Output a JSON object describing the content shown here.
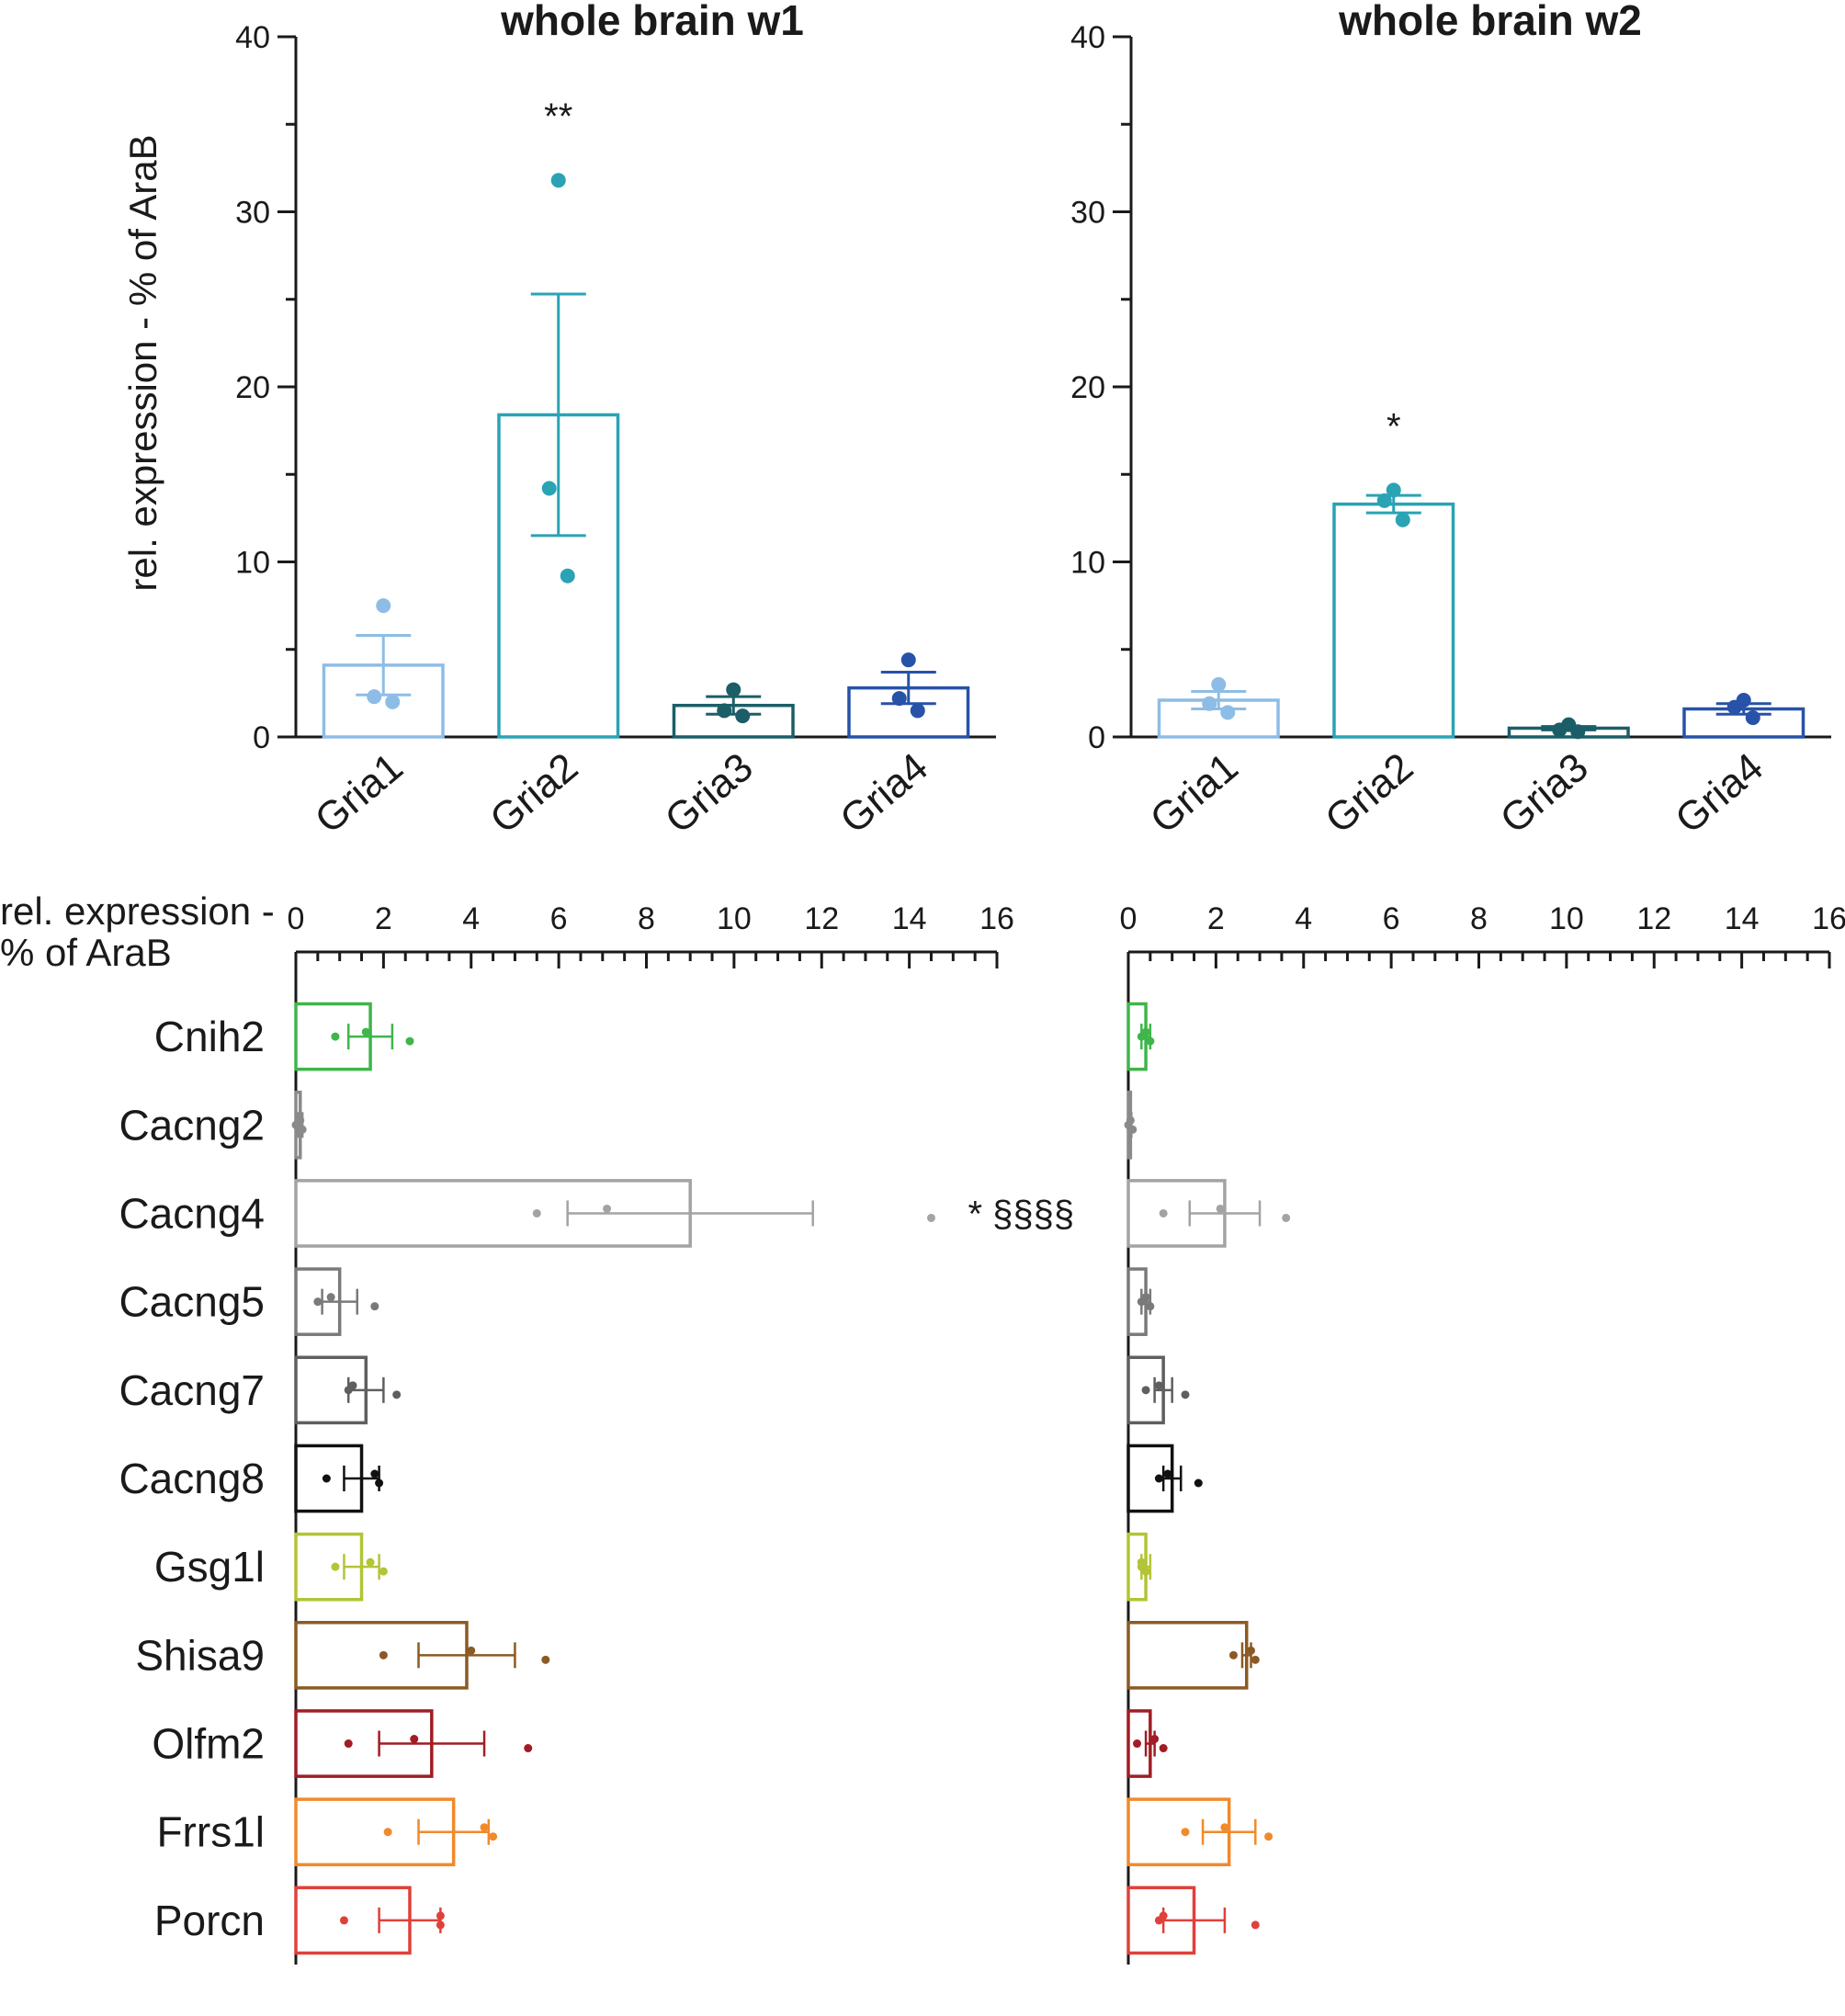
{
  "chart_data": [
    {
      "id": "w1_gria",
      "type": "bar",
      "title": "whole brain w1",
      "ylabel": "rel. expression - % of AraB",
      "ylim": [
        0,
        40
      ],
      "yticks": [
        0,
        10,
        20,
        30,
        40
      ],
      "categories": [
        "Gria1",
        "Gria2",
        "Gria3",
        "Gria4"
      ],
      "colors": [
        "#8dbde6",
        "#2aa3b5",
        "#1b5e68",
        "#2752a8"
      ],
      "values": [
        4.1,
        18.4,
        1.8,
        2.8
      ],
      "sem": [
        1.7,
        6.9,
        0.5,
        0.9
      ],
      "points": [
        [
          7.5,
          2.3,
          2.0
        ],
        [
          31.8,
          14.2,
          9.2
        ],
        [
          2.7,
          1.5,
          1.2
        ],
        [
          4.4,
          2.2,
          1.5
        ]
      ],
      "annotations": [
        "",
        "**",
        "",
        ""
      ],
      "grid": false
    },
    {
      "id": "w2_gria",
      "type": "bar",
      "title": "whole brain w2",
      "ylabel": "",
      "ylim": [
        0,
        40
      ],
      "yticks": [
        0,
        10,
        20,
        30,
        40
      ],
      "categories": [
        "Gria1",
        "Gria2",
        "Gria3",
        "Gria4"
      ],
      "colors": [
        "#8dbde6",
        "#2aa3b5",
        "#1b5e68",
        "#2752a8"
      ],
      "values": [
        2.1,
        13.3,
        0.5,
        1.6
      ],
      "sem": [
        0.5,
        0.5,
        0.1,
        0.3
      ],
      "points": [
        [
          3.0,
          1.9,
          1.4
        ],
        [
          14.1,
          13.5,
          12.4
        ],
        [
          0.7,
          0.4,
          0.3
        ],
        [
          2.1,
          1.7,
          1.1
        ]
      ],
      "annotations": [
        "",
        "*",
        "",
        ""
      ],
      "grid": false
    },
    {
      "id": "w1_aux",
      "type": "bar",
      "orientation": "horizontal",
      "title": "",
      "xlabel": "rel. expression - % of AraB",
      "xlim": [
        0,
        16
      ],
      "xticks": [
        0,
        2,
        4,
        6,
        8,
        10,
        12,
        14,
        16
      ],
      "categories": [
        "Cnih2",
        "Cacng2",
        "Cacng4",
        "Cacng5",
        "Cacng7",
        "Cacng8",
        "Gsg1l",
        "Shisa9",
        "Olfm2",
        "Frrs1l",
        "Porcn"
      ],
      "colors": [
        "#3fb54a",
        "#8a8a8a",
        "#a3a3a3",
        "#7a7a7a",
        "#5f5f5f",
        "#111111",
        "#b3c436",
        "#8b5a24",
        "#a11c24",
        "#f08a2b",
        "#e0403a"
      ],
      "values": [
        1.7,
        0.1,
        9.0,
        1.0,
        1.6,
        1.5,
        1.5,
        3.9,
        3.1,
        3.6,
        2.6
      ],
      "sem": [
        0.5,
        0.05,
        2.8,
        0.4,
        0.4,
        0.4,
        0.4,
        1.1,
        1.2,
        0.8,
        0.7
      ],
      "points": [
        [
          0.9,
          1.6,
          2.6
        ],
        [
          0.0,
          0.1,
          0.15
        ],
        [
          5.5,
          7.1,
          14.5
        ],
        [
          0.5,
          0.8,
          1.8
        ],
        [
          1.2,
          1.3,
          2.3
        ],
        [
          0.7,
          1.8,
          1.9
        ],
        [
          0.9,
          1.7,
          2.0
        ],
        [
          2.0,
          4.0,
          5.7
        ],
        [
          1.2,
          2.7,
          5.3
        ],
        [
          2.1,
          4.3,
          4.5
        ],
        [
          1.1,
          3.3,
          3.3
        ]
      ],
      "annotations": [
        "",
        "",
        "* §§§§",
        "",
        "",
        "",
        "",
        "",
        "",
        "",
        ""
      ],
      "grid": false
    },
    {
      "id": "w2_aux",
      "type": "bar",
      "orientation": "horizontal",
      "title": "",
      "xlabel": "",
      "xlim": [
        0,
        16
      ],
      "xticks": [
        0,
        2,
        4,
        6,
        8,
        10,
        12,
        14,
        16
      ],
      "categories": [
        "Cnih2",
        "Cacng2",
        "Cacng4",
        "Cacng5",
        "Cacng7",
        "Cacng8",
        "Gsg1l",
        "Shisa9",
        "Olfm2",
        "Frrs1l",
        "Porcn"
      ],
      "colors": [
        "#3fb54a",
        "#8a8a8a",
        "#a3a3a3",
        "#7a7a7a",
        "#5f5f5f",
        "#111111",
        "#b3c436",
        "#8b5a24",
        "#a11c24",
        "#f08a2b",
        "#e0403a"
      ],
      "values": [
        0.4,
        0.05,
        2.2,
        0.4,
        0.8,
        1.0,
        0.4,
        2.7,
        0.5,
        2.3,
        1.5
      ],
      "sem": [
        0.1,
        0.02,
        0.8,
        0.1,
        0.2,
        0.2,
        0.1,
        0.1,
        0.1,
        0.6,
        0.7
      ],
      "points": [
        [
          0.3,
          0.4,
          0.5
        ],
        [
          0.0,
          0.05,
          0.1
        ],
        [
          0.8,
          2.1,
          3.6
        ],
        [
          0.3,
          0.4,
          0.5
        ],
        [
          0.4,
          0.7,
          1.3
        ],
        [
          0.7,
          0.9,
          1.6
        ],
        [
          0.3,
          0.3,
          0.4
        ],
        [
          2.4,
          2.8,
          2.9
        ],
        [
          0.2,
          0.6,
          0.8
        ],
        [
          1.3,
          2.2,
          3.2
        ],
        [
          0.7,
          0.8,
          2.9
        ]
      ],
      "annotations": [
        "",
        "",
        "",
        "",
        "",
        "",
        "",
        "",
        "",
        "",
        ""
      ],
      "grid": false
    }
  ]
}
